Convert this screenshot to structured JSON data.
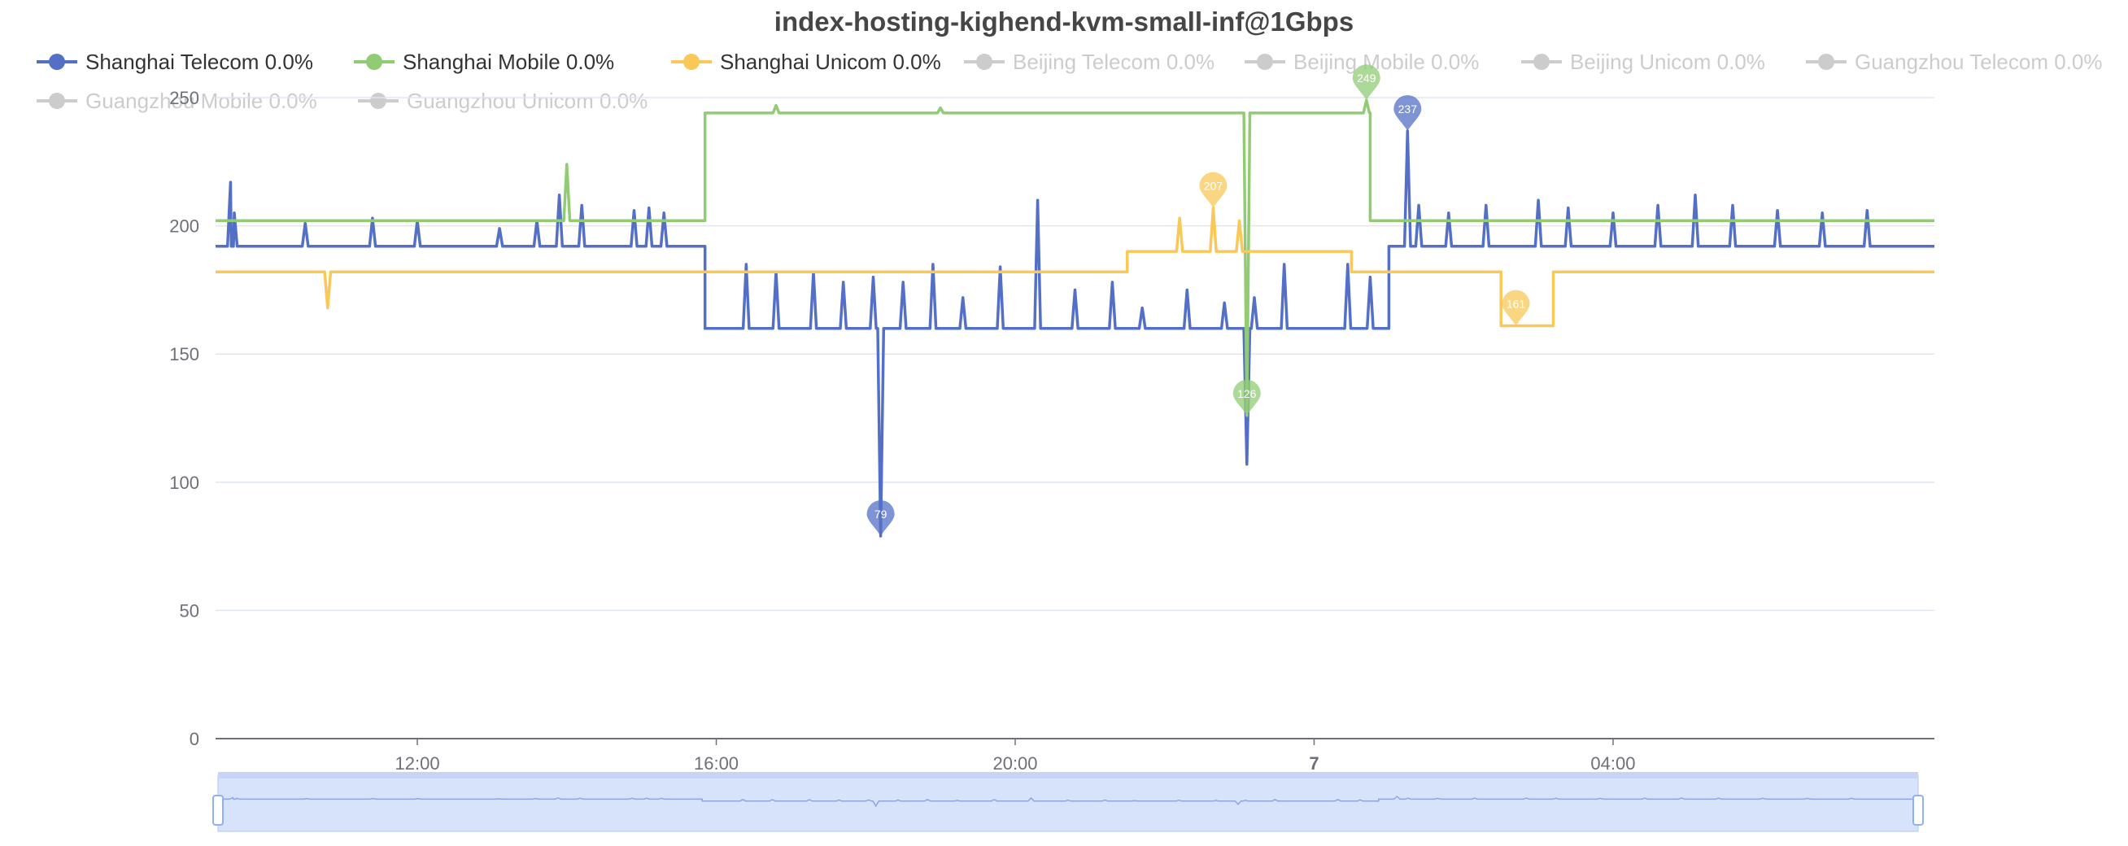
{
  "chart_data": {
    "type": "line",
    "title": "index-hosting-kighend-kvm-small-inf@1Gbps",
    "xlabel": "",
    "ylabel": "",
    "ylim": [
      0,
      250
    ],
    "yticks": [
      0,
      50,
      100,
      150,
      200,
      250
    ],
    "x_range_hours": [
      9.3,
      32.3
    ],
    "xticks": [
      {
        "hour": 12,
        "label": "12:00",
        "bold": false
      },
      {
        "hour": 16,
        "label": "16:00",
        "bold": false
      },
      {
        "hour": 20,
        "label": "20:00",
        "bold": false
      },
      {
        "hour": 24,
        "label": "7",
        "bold": true
      },
      {
        "hour": 28,
        "label": "04:00",
        "bold": false
      }
    ],
    "grid": true,
    "legend_position": "top",
    "legend": [
      {
        "label": "Shanghai Telecom 0.0%",
        "color": "#5470c6",
        "active": true
      },
      {
        "label": "Shanghai Mobile 0.0%",
        "color": "#91cc75",
        "active": true
      },
      {
        "label": "Shanghai Unicom 0.0%",
        "color": "#fac858",
        "active": true
      },
      {
        "label": "Beijing Telecom 0.0%",
        "color": "#cccccc",
        "active": false
      },
      {
        "label": "Beijing Mobile 0.0%",
        "color": "#cccccc",
        "active": false
      },
      {
        "label": "Beijing Unicom 0.0%",
        "color": "#cccccc",
        "active": false
      },
      {
        "label": "Guangzhou Telecom 0.0%",
        "color": "#cccccc",
        "active": false
      },
      {
        "label": "Guangzhou Mobile 0.0%",
        "color": "#cccccc",
        "active": false
      },
      {
        "label": "Guangzhou Unicom 0.0%",
        "color": "#cccccc",
        "active": false
      }
    ],
    "series": [
      {
        "name": "Shanghai Telecom",
        "color": "#5470c6",
        "baseline_segments": [
          {
            "x0": 9.3,
            "x1": 15.85,
            "y": 192
          },
          {
            "x0": 15.85,
            "x1": 25.0,
            "y": 160
          },
          {
            "x0": 25.0,
            "x1": 32.3,
            "y": 192
          }
        ],
        "spikes": [
          {
            "x": 9.55,
            "y": 205
          },
          {
            "x": 9.5,
            "y": 217
          },
          {
            "x": 10.5,
            "y": 201
          },
          {
            "x": 11.4,
            "y": 203
          },
          {
            "x": 12.0,
            "y": 202
          },
          {
            "x": 13.1,
            "y": 199
          },
          {
            "x": 13.6,
            "y": 202
          },
          {
            "x": 13.9,
            "y": 212
          },
          {
            "x": 14.2,
            "y": 208
          },
          {
            "x": 14.9,
            "y": 206
          },
          {
            "x": 15.1,
            "y": 207
          },
          {
            "x": 15.3,
            "y": 205
          },
          {
            "x": 16.4,
            "y": 185
          },
          {
            "x": 16.8,
            "y": 182
          },
          {
            "x": 17.3,
            "y": 182
          },
          {
            "x": 17.7,
            "y": 178
          },
          {
            "x": 18.1,
            "y": 180
          },
          {
            "x": 18.5,
            "y": 178
          },
          {
            "x": 18.9,
            "y": 185
          },
          {
            "x": 19.3,
            "y": 172
          },
          {
            "x": 19.8,
            "y": 184
          },
          {
            "x": 20.3,
            "y": 210
          },
          {
            "x": 20.8,
            "y": 175
          },
          {
            "x": 21.3,
            "y": 178
          },
          {
            "x": 21.7,
            "y": 168
          },
          {
            "x": 22.3,
            "y": 175
          },
          {
            "x": 22.8,
            "y": 170
          },
          {
            "x": 23.2,
            "y": 172
          },
          {
            "x": 23.6,
            "y": 185
          },
          {
            "x": 25.4,
            "y": 208
          },
          {
            "x": 25.8,
            "y": 205
          },
          {
            "x": 26.3,
            "y": 208
          },
          {
            "x": 27.0,
            "y": 210
          },
          {
            "x": 27.4,
            "y": 207
          },
          {
            "x": 28.0,
            "y": 205
          },
          {
            "x": 28.6,
            "y": 208
          },
          {
            "x": 29.1,
            "y": 212
          },
          {
            "x": 29.6,
            "y": 208
          },
          {
            "x": 30.2,
            "y": 206
          },
          {
            "x": 30.8,
            "y": 205
          },
          {
            "x": 31.4,
            "y": 206
          },
          {
            "x": 24.45,
            "y": 185
          },
          {
            "x": 24.75,
            "y": 180
          }
        ],
        "dips": [
          {
            "x": 18.2,
            "y": 79
          },
          {
            "x": 23.1,
            "y": 107
          },
          {
            "x": 26.3,
            "y": 165
          },
          {
            "x": 27.0,
            "y": 170
          }
        ],
        "peaks": [
          {
            "x": 25.25,
            "y": 237
          }
        ],
        "markers": [
          {
            "type": "max",
            "x": 25.25,
            "y": 237,
            "label": "237"
          },
          {
            "type": "min",
            "x": 18.2,
            "y": 79,
            "label": "79"
          }
        ]
      },
      {
        "name": "Shanghai Mobile",
        "color": "#91cc75",
        "baseline_segments": [
          {
            "x0": 9.3,
            "x1": 15.85,
            "y": 202
          },
          {
            "x0": 15.85,
            "x1": 24.75,
            "y": 244
          },
          {
            "x0": 24.75,
            "x1": 32.3,
            "y": 202
          }
        ],
        "spikes": [
          {
            "x": 14.0,
            "y": 224
          },
          {
            "x": 16.8,
            "y": 247
          },
          {
            "x": 19.0,
            "y": 246
          },
          {
            "x": 24.7,
            "y": 249
          }
        ],
        "dips": [
          {
            "x": 23.1,
            "y": 126
          }
        ],
        "peaks": [],
        "markers": [
          {
            "type": "max",
            "x": 24.7,
            "y": 249,
            "label": "249"
          },
          {
            "type": "min",
            "x": 23.1,
            "y": 126,
            "label": "126"
          }
        ]
      },
      {
        "name": "Shanghai Unicom",
        "color": "#fac858",
        "baseline_segments": [
          {
            "x0": 9.3,
            "x1": 21.5,
            "y": 182
          },
          {
            "x0": 21.5,
            "x1": 24.5,
            "y": 190
          },
          {
            "x0": 24.5,
            "x1": 26.5,
            "y": 182
          },
          {
            "x0": 26.5,
            "x1": 27.2,
            "y": 161
          },
          {
            "x0": 27.2,
            "x1": 32.3,
            "y": 182
          }
        ],
        "spikes": [
          {
            "x": 22.65,
            "y": 207
          },
          {
            "x": 22.2,
            "y": 203
          },
          {
            "x": 23.0,
            "y": 202
          }
        ],
        "dips": [
          {
            "x": 10.8,
            "y": 168
          }
        ],
        "peaks": [],
        "markers": [
          {
            "type": "max",
            "x": 22.65,
            "y": 207,
            "label": "207"
          },
          {
            "type": "min",
            "x": 26.7,
            "y": 161,
            "label": "161"
          }
        ]
      }
    ]
  }
}
